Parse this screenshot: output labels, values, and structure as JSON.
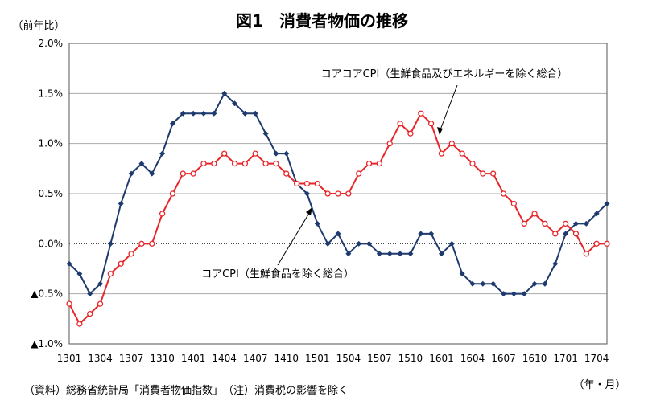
{
  "chart_data": {
    "type": "line",
    "title": "図1　消費者物価の推移",
    "ylabel": "（前年比）",
    "xlabel": "（年・月）",
    "note": "（資料）総務省統計局「消費者物価指数」　（注）消費税の影響を除く",
    "ylim": [
      -1.0,
      2.0
    ],
    "yticks": [
      2.0,
      1.5,
      1.0,
      0.5,
      0.0,
      -0.5,
      -1.0
    ],
    "ytick_labels": [
      "2.0%",
      "1.5%",
      "1.0%",
      "0.5%",
      "0.0%",
      "▲0.5%",
      "▲1.0%"
    ],
    "x_labels": [
      "1301",
      "1304",
      "1307",
      "1310",
      "1401",
      "1404",
      "1407",
      "1410",
      "1501",
      "1504",
      "1507",
      "1510",
      "1601",
      "1604",
      "1607",
      "1610",
      "1701",
      "1704"
    ],
    "x_label_step": 3,
    "grid": true,
    "series": [
      {
        "name": "コアCPI（生鮮食品を除く総合）",
        "color": "#1f3a6e",
        "marker": "diamond",
        "values": [
          -0.2,
          -0.3,
          -0.5,
          -0.4,
          0.0,
          0.4,
          0.7,
          0.8,
          0.7,
          0.9,
          1.2,
          1.3,
          1.3,
          1.3,
          1.3,
          1.5,
          1.4,
          1.3,
          1.3,
          1.1,
          0.9,
          0.9,
          0.6,
          0.5,
          0.2,
          0.0,
          0.1,
          -0.1,
          0.0,
          0.0,
          -0.1,
          -0.1,
          -0.1,
          -0.1,
          0.1,
          0.1,
          -0.1,
          0.0,
          -0.3,
          -0.4,
          -0.4,
          -0.4,
          -0.5,
          -0.5,
          -0.5,
          -0.4,
          -0.4,
          -0.2,
          0.1,
          0.2,
          0.2,
          0.3,
          0.4
        ]
      },
      {
        "name": "コアコアCPI（生鮮食品及びエネルギーを除く総合）",
        "color": "#e8262a",
        "marker": "circle",
        "values": [
          -0.6,
          -0.8,
          -0.7,
          -0.6,
          -0.3,
          -0.2,
          -0.1,
          0.0,
          0.0,
          0.3,
          0.5,
          0.7,
          0.7,
          0.8,
          0.8,
          0.9,
          0.8,
          0.8,
          0.9,
          0.8,
          0.8,
          0.7,
          0.6,
          0.6,
          0.6,
          0.5,
          0.5,
          0.5,
          0.7,
          0.8,
          0.8,
          1.0,
          1.2,
          1.1,
          1.3,
          1.2,
          0.9,
          1.0,
          0.9,
          0.8,
          0.7,
          0.7,
          0.5,
          0.4,
          0.2,
          0.3,
          0.2,
          0.1,
          0.2,
          0.1,
          -0.1,
          0.0,
          0.0
        ]
      }
    ],
    "annotations": [
      "コアコアCPI（生鮮食品及びエネルギーを除く総合）",
      "コアCPI（生鮮食品を除く総合）"
    ]
  }
}
